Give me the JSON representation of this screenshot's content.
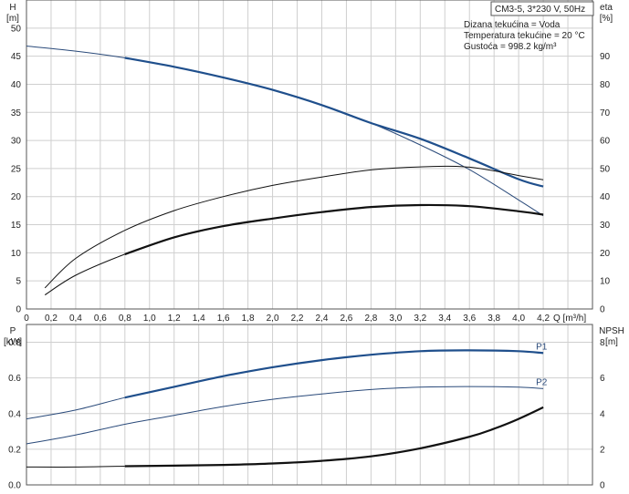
{
  "chart_data": [
    {
      "type": "line",
      "title": "CM3-5, 3*230 V, 50Hz",
      "notes": [
        "Dizana tekućina = Voda",
        "Temperatura tekućine = 20 °C",
        "Gustoća = 998.2 kg/m³"
      ],
      "xlabel": "Q [m³/h]",
      "ylabel_left": [
        "H",
        "[m]"
      ],
      "ylabel_right": [
        "eta",
        "[%]"
      ],
      "xlim": [
        0,
        4.6
      ],
      "ylim_left": [
        0,
        55
      ],
      "ylim_right": [
        0,
        110
      ],
      "x_ticks": [
        "0",
        "0,2",
        "0,4",
        "0,6",
        "0,8",
        "1,0",
        "1,2",
        "1,4",
        "1,6",
        "1,8",
        "2,0",
        "2,2",
        "2,4",
        "2,6",
        "2,8",
        "3,0",
        "3,2",
        "3,4",
        "3,6",
        "3,8",
        "4,0",
        "4,2"
      ],
      "y_ticks_left": [
        "0",
        "5",
        "10",
        "15",
        "20",
        "25",
        "30",
        "35",
        "40",
        "45",
        "50"
      ],
      "y_ticks_right": [
        "0",
        "10",
        "20",
        "30",
        "40",
        "50",
        "60",
        "70",
        "80",
        "90"
      ],
      "grid": true,
      "series": [
        {
          "axis": "left",
          "style": "thin",
          "color": "#2a4a7a",
          "x": [
            0,
            0.4,
            0.8,
            1.2,
            1.6,
            2.0,
            2.4,
            2.8,
            3.2,
            3.6,
            4.0,
            4.2
          ],
          "values": [
            46.8,
            45.9,
            44.7,
            43.1,
            41.2,
            39.0,
            36.3,
            33.1,
            29.2,
            24.8,
            19.4,
            16.6
          ]
        },
        {
          "axis": "left",
          "style": "thick",
          "color": "#1f4f8c",
          "x": [
            0.8,
            1.2,
            1.6,
            2.0,
            2.4,
            2.8,
            3.2,
            3.6,
            4.0,
            4.2
          ],
          "values": [
            44.7,
            43.1,
            41.2,
            39.0,
            36.3,
            33.1,
            30.3,
            26.8,
            23.1,
            21.8
          ]
        },
        {
          "axis": "right",
          "style": "thin",
          "color": "#111111",
          "x": [
            0.15,
            0.4,
            0.8,
            1.2,
            1.6,
            2.0,
            2.4,
            2.8,
            3.2,
            3.6,
            4.0,
            4.2
          ],
          "values": [
            7.5,
            18,
            28,
            35,
            40,
            44,
            47,
            49.5,
            50.6,
            50.5,
            47.5,
            46
          ]
        },
        {
          "axis": "right",
          "style": "thin",
          "color": "#111111",
          "x": [
            0.15,
            0.4,
            0.8,
            1.2,
            1.6,
            2.0,
            2.4,
            2.8,
            3.2,
            3.6,
            4.0,
            4.2
          ],
          "values": [
            5,
            12,
            19.5,
            25.5,
            29.5,
            32.2,
            34.5,
            36.3,
            37.0,
            36.6,
            34.8,
            33.6
          ]
        },
        {
          "axis": "right",
          "style": "thick",
          "color": "#111111",
          "x": [
            0.8,
            1.2,
            1.6,
            2.0,
            2.4,
            2.8,
            3.2,
            3.6,
            4.0,
            4.2
          ],
          "values": [
            19.5,
            25.5,
            29.5,
            32.2,
            34.5,
            36.3,
            37.0,
            36.6,
            34.8,
            33.6
          ]
        }
      ]
    },
    {
      "type": "line",
      "xlim": [
        0,
        4.6
      ],
      "ylabel_left": [
        "P",
        "[kW]"
      ],
      "ylabel_right": [
        "NPSH",
        "[m]"
      ],
      "ylim_left": [
        0,
        0.9
      ],
      "ylim_right": [
        0,
        9
      ],
      "y_ticks_left": [
        "0.0",
        "0.2",
        "0.4",
        "0.6",
        "0.8"
      ],
      "y_ticks_right": [
        "0",
        "2",
        "4",
        "6",
        "8"
      ],
      "grid": true,
      "series": [
        {
          "name": "P1",
          "axis": "left",
          "style": "thin",
          "color": "#2a4a7a",
          "x": [
            0,
            0.4,
            0.8,
            1.2,
            1.6,
            2.0,
            2.4,
            2.8,
            3.2,
            3.6,
            4.0,
            4.2
          ],
          "values": [
            0.37,
            0.42,
            0.49,
            0.55,
            0.61,
            0.66,
            0.7,
            0.73,
            0.75,
            0.755,
            0.75,
            0.74
          ]
        },
        {
          "axis": "left",
          "style": "thick",
          "color": "#1f4f8c",
          "x": [
            0.8,
            1.2,
            1.6,
            2.0,
            2.4,
            2.8,
            3.2,
            3.6,
            4.0,
            4.2
          ],
          "values": [
            0.49,
            0.55,
            0.61,
            0.66,
            0.7,
            0.73,
            0.75,
            0.755,
            0.75,
            0.74
          ]
        },
        {
          "name": "P2",
          "axis": "left",
          "style": "thin",
          "color": "#2a4a7a",
          "x": [
            0,
            0.4,
            0.8,
            1.2,
            1.6,
            2.0,
            2.4,
            2.8,
            3.2,
            3.6,
            4.0,
            4.2
          ],
          "values": [
            0.23,
            0.28,
            0.34,
            0.39,
            0.44,
            0.48,
            0.51,
            0.535,
            0.548,
            0.552,
            0.548,
            0.54
          ]
        },
        {
          "axis": "right",
          "style": "thin",
          "color": "#111111",
          "x": [
            0,
            0.4,
            0.8
          ],
          "values": [
            1.0,
            1.0,
            1.05
          ]
        },
        {
          "axis": "right",
          "style": "thick",
          "color": "#111111",
          "x": [
            0.8,
            1.2,
            1.6,
            2.0,
            2.4,
            2.8,
            3.2,
            3.6,
            3.8,
            4.0,
            4.2
          ],
          "values": [
            1.05,
            1.08,
            1.12,
            1.2,
            1.35,
            1.6,
            2.05,
            2.7,
            3.15,
            3.7,
            4.35
          ]
        }
      ]
    }
  ]
}
